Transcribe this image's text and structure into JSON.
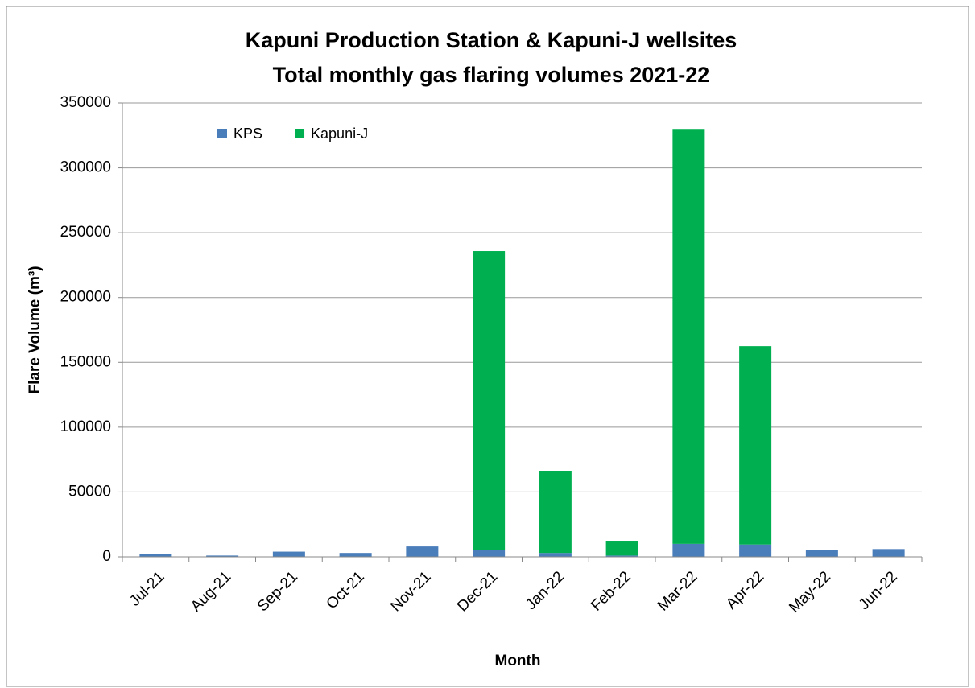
{
  "chart_data": {
    "type": "stacked_bar",
    "title": [
      "Kapuni Production Station & Kapuni-J wellsites",
      "Total monthly gas flaring volumes 2021-22"
    ],
    "x_label": "Month",
    "y_label": "Flare Volume (m³)",
    "categories": [
      "Jul-21",
      "Aug-21",
      "Sep-21",
      "Oct-21",
      "Nov-21",
      "Dec-21",
      "Jan-22",
      "Feb-22",
      "Mar-22",
      "Apr-22",
      "May-22",
      "Jun-22"
    ],
    "series": [
      {
        "name": "KPS",
        "color": "#4a7ebb",
        "values": [
          2000,
          1000,
          4000,
          3000,
          8000,
          5000,
          3000,
          1000,
          10000,
          9500,
          5000,
          6000
        ]
      },
      {
        "name": "Kapuni-J",
        "color": "#00b050",
        "values": [
          0,
          0,
          0,
          0,
          0,
          230800,
          63400,
          11400,
          320000,
          153000,
          0,
          0
        ]
      }
    ],
    "ylim": [
      0,
      350000
    ],
    "yticks": [
      0,
      50000,
      100000,
      150000,
      200000,
      250000,
      300000,
      350000
    ],
    "grid": true,
    "legend": "top-left"
  }
}
